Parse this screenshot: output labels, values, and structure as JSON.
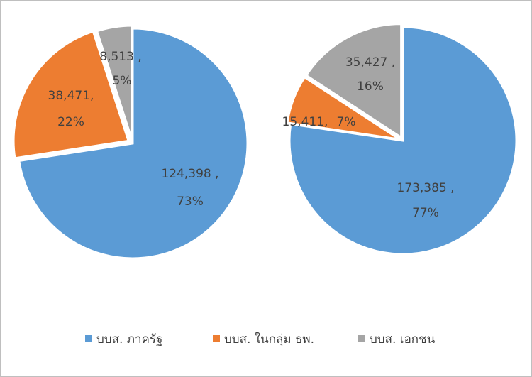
{
  "chart_data": [
    {
      "type": "pie",
      "categories": [
        "บบส. ภาครัฐ",
        "บบส. ในกลุ่ม ธพ.",
        "บบส. เอกชน"
      ],
      "colors": [
        "#5b9bd5",
        "#ed7d31",
        "#a5a5a5"
      ],
      "values": [
        124398,
        38471,
        8513
      ],
      "value_labels": [
        "124,398 ,",
        "38,471,",
        "8,513 ,"
      ],
      "percent_labels": [
        "73%",
        "22%",
        "5%"
      ]
    },
    {
      "type": "pie",
      "categories": [
        "บบส. ภาครัฐ",
        "บบส. ในกลุ่ม ธพ.",
        "บบส. เอกชน"
      ],
      "colors": [
        "#5b9bd5",
        "#ed7d31",
        "#a5a5a5"
      ],
      "values": [
        173385,
        15411,
        35427
      ],
      "value_labels": [
        "173,385 ,",
        "15,411,",
        "35,427 ,"
      ],
      "percent_labels": [
        "77%",
        "7%",
        "16%"
      ]
    }
  ]
}
